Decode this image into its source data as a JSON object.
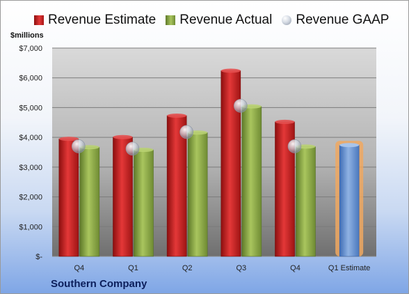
{
  "chart_data": {
    "type": "bar",
    "title": "",
    "subtitle": "Southern Company",
    "ylabel": "$millions",
    "xlabel": "",
    "categories": [
      "Q4",
      "Q1",
      "Q2",
      "Q3",
      "Q4",
      "Q1 Estimate"
    ],
    "series": [
      {
        "name": "Revenue Estimate",
        "kind": "bar",
        "color": "#c42020",
        "values": [
          3950,
          4010,
          4730,
          6240,
          4520,
          null
        ]
      },
      {
        "name": "Revenue Actual",
        "kind": "bar",
        "color": "#8aa84a",
        "values": [
          3670,
          3580,
          4160,
          5040,
          3690,
          null
        ]
      },
      {
        "name": "Revenue GAAP",
        "kind": "marker",
        "color": "#c9d0db",
        "values": [
          3700,
          3620,
          4180,
          5060,
          3700,
          null
        ]
      },
      {
        "name": "Q1 Estimate",
        "kind": "bar",
        "color": "#6e96cf",
        "highlight": "#f0a860",
        "values": [
          null,
          null,
          null,
          null,
          null,
          3740
        ]
      }
    ],
    "ylim": [
      0,
      7000
    ],
    "yticks": [
      0,
      1000,
      2000,
      3000,
      4000,
      5000,
      6000,
      7000
    ],
    "ytick_labels": [
      "$-",
      "$1,000",
      "$2,000",
      "$3,000",
      "$4,000",
      "$5,000",
      "$6,000",
      "$7,000"
    ],
    "grid": true,
    "legend": "top"
  }
}
